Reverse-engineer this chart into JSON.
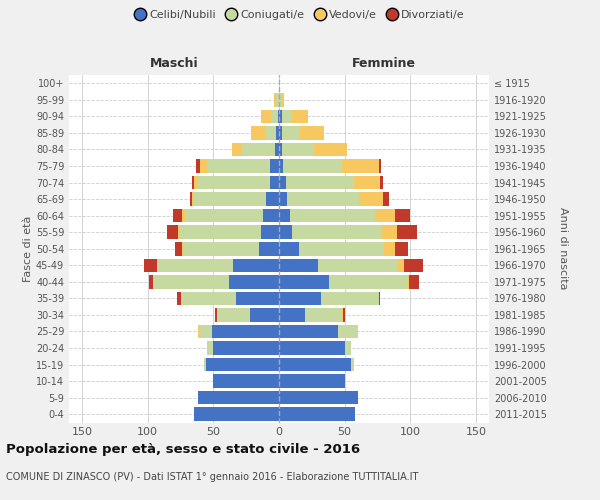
{
  "age_groups": [
    "0-4",
    "5-9",
    "10-14",
    "15-19",
    "20-24",
    "25-29",
    "30-34",
    "35-39",
    "40-44",
    "45-49",
    "50-54",
    "55-59",
    "60-64",
    "65-69",
    "70-74",
    "75-79",
    "80-84",
    "85-89",
    "90-94",
    "95-99",
    "100+"
  ],
  "birth_years": [
    "2011-2015",
    "2006-2010",
    "2001-2005",
    "1996-2000",
    "1991-1995",
    "1986-1990",
    "1981-1985",
    "1976-1980",
    "1971-1975",
    "1966-1970",
    "1961-1965",
    "1956-1960",
    "1951-1955",
    "1946-1950",
    "1941-1945",
    "1936-1940",
    "1931-1935",
    "1926-1930",
    "1921-1925",
    "1916-1920",
    "≤ 1915"
  ],
  "maschi": {
    "celibi": [
      65,
      62,
      50,
      56,
      50,
      51,
      22,
      33,
      38,
      35,
      15,
      14,
      12,
      10,
      7,
      7,
      3,
      2,
      1,
      0,
      0
    ],
    "coniugati": [
      0,
      0,
      0,
      1,
      5,
      10,
      25,
      42,
      58,
      58,
      58,
      62,
      60,
      55,
      55,
      48,
      25,
      9,
      5,
      2,
      0
    ],
    "vedovi": [
      0,
      0,
      0,
      0,
      0,
      1,
      0,
      0,
      0,
      0,
      1,
      1,
      2,
      1,
      3,
      5,
      8,
      10,
      8,
      2,
      0
    ],
    "divorziati": [
      0,
      0,
      0,
      0,
      0,
      0,
      2,
      3,
      3,
      10,
      5,
      8,
      7,
      2,
      1,
      3,
      0,
      0,
      0,
      0,
      0
    ]
  },
  "femmine": {
    "nubili": [
      58,
      60,
      50,
      55,
      50,
      45,
      20,
      32,
      38,
      30,
      15,
      10,
      8,
      6,
      5,
      3,
      2,
      2,
      2,
      0,
      0
    ],
    "coniugate": [
      0,
      0,
      0,
      2,
      5,
      15,
      28,
      44,
      60,
      60,
      65,
      68,
      65,
      55,
      52,
      45,
      25,
      14,
      8,
      2,
      0
    ],
    "vedove": [
      0,
      0,
      0,
      0,
      0,
      0,
      1,
      0,
      1,
      5,
      8,
      12,
      15,
      18,
      20,
      28,
      25,
      18,
      12,
      2,
      0
    ],
    "divorziate": [
      0,
      0,
      0,
      0,
      0,
      0,
      1,
      1,
      8,
      15,
      10,
      15,
      12,
      5,
      2,
      2,
      0,
      0,
      0,
      0,
      0
    ]
  },
  "colors": {
    "celibi_nubili": "#4472C4",
    "coniugati": "#C5D9A0",
    "vedovi": "#F8C860",
    "divorziati": "#C0392B"
  },
  "xlim": 160,
  "title": "Popolazione per età, sesso e stato civile - 2016",
  "subtitle": "COMUNE DI ZINASCO (PV) - Dati ISTAT 1° gennaio 2016 - Elaborazione TUTTITALIA.IT",
  "ylabel_left": "Fasce di età",
  "ylabel_right": "Anni di nascita",
  "xlabel_maschi": "Maschi",
  "xlabel_femmine": "Femmine",
  "bg_color": "#f0f0f0",
  "plot_bg": "#ffffff"
}
